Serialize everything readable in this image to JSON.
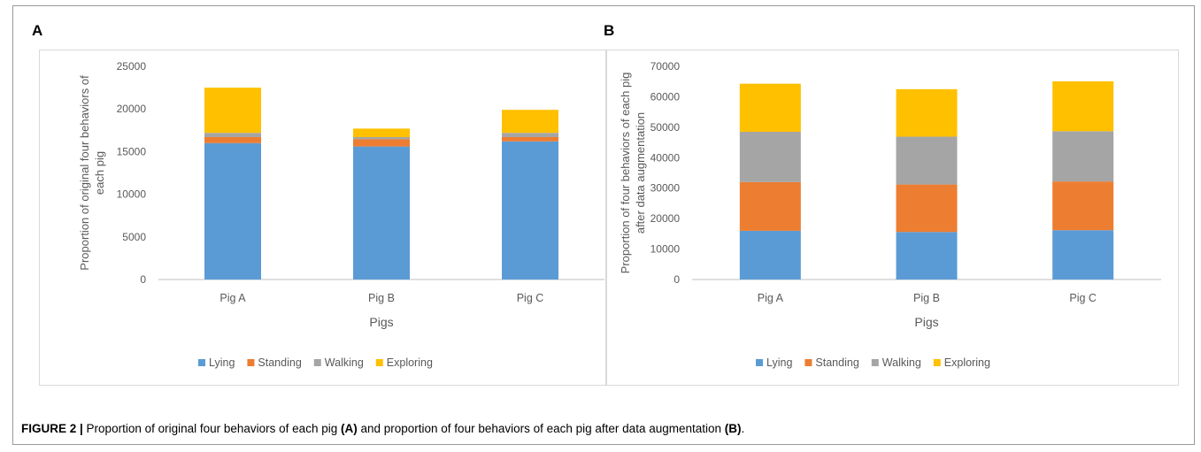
{
  "panel_letters": [
    "A",
    "B"
  ],
  "caption": {
    "label": "FIGURE 2 |",
    "text_before_a": " Proportion of original four behaviors of each pig ",
    "ref_a": "(A)",
    "text_between": " and proportion of four behaviors of each pig after data augmentation ",
    "ref_b": "(B)",
    "text_after": "."
  },
  "colors": {
    "Lying": "#5b9bd5",
    "Standing": "#ed7d31",
    "Walking": "#a5a5a5",
    "Exploring": "#ffc000"
  },
  "chart_data": [
    {
      "type": "bar",
      "stacked": true,
      "panel": "A",
      "title": "",
      "xlabel": "Pigs",
      "ylabel_lines": [
        "Proportion of original four behaviors of",
        "each pig"
      ],
      "categories": [
        "Pig A",
        "Pig B",
        "Pig C"
      ],
      "ylim": [
        0,
        25000
      ],
      "yticks": [
        0,
        5000,
        10000,
        15000,
        20000,
        25000
      ],
      "legend_position": "bottom",
      "series": [
        {
          "name": "Lying",
          "values": [
            16000,
            15600,
            16200
          ]
        },
        {
          "name": "Standing",
          "values": [
            700,
            850,
            500
          ]
        },
        {
          "name": "Walking",
          "values": [
            500,
            250,
            500
          ]
        },
        {
          "name": "Exploring",
          "values": [
            5300,
            1000,
            2700
          ]
        }
      ]
    },
    {
      "type": "bar",
      "stacked": true,
      "panel": "B",
      "title": "",
      "xlabel": "Pigs",
      "ylabel_lines": [
        "Proportion of four behaviors of each pig",
        "after data augmentation"
      ],
      "categories": [
        "Pig A",
        "Pig B",
        "Pig C"
      ],
      "ylim": [
        0,
        70000
      ],
      "yticks": [
        0,
        10000,
        20000,
        30000,
        40000,
        50000,
        60000,
        70000
      ],
      "legend_position": "bottom",
      "series": [
        {
          "name": "Lying",
          "values": [
            16000,
            15600,
            16200
          ]
        },
        {
          "name": "Standing",
          "values": [
            16000,
            15600,
            16000
          ]
        },
        {
          "name": "Walking",
          "values": [
            16500,
            15700,
            16500
          ]
        },
        {
          "name": "Exploring",
          "values": [
            15800,
            15600,
            16400
          ]
        }
      ]
    }
  ]
}
